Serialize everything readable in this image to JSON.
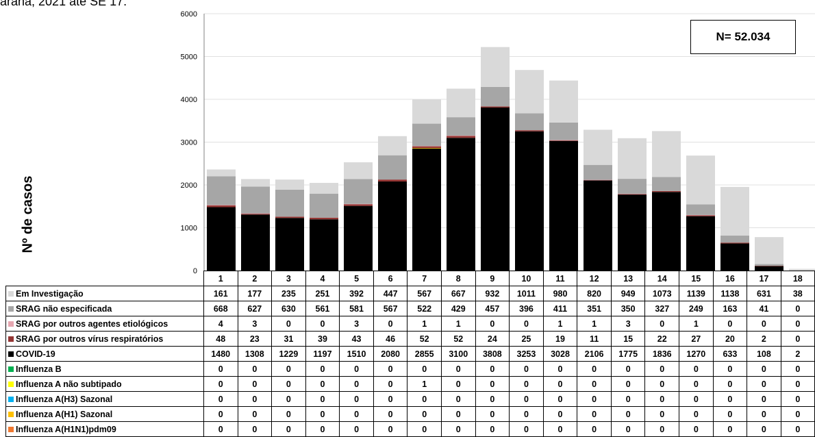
{
  "caption": "araná, 2021 até SE 17.",
  "n_label": "N= 52.034",
  "chart_data": {
    "type": "bar",
    "stacked": true,
    "ylabel": "Nº de casos",
    "ylim": [
      0,
      6000
    ],
    "yticks": [
      0,
      1000,
      2000,
      3000,
      4000,
      5000,
      6000
    ],
    "grid": true,
    "categories": [
      "1",
      "2",
      "3",
      "4",
      "5",
      "6",
      "7",
      "8",
      "9",
      "10",
      "11",
      "12",
      "13",
      "14",
      "15",
      "16",
      "17",
      "18"
    ],
    "series": [
      {
        "name": "Em Investigação",
        "color": "#d9d9d9",
        "values": [
          161,
          177,
          235,
          251,
          392,
          447,
          567,
          667,
          932,
          1011,
          980,
          820,
          949,
          1073,
          1139,
          1138,
          631,
          38
        ]
      },
      {
        "name": "SRAG não especificada",
        "color": "#a6a6a6",
        "values": [
          668,
          627,
          630,
          561,
          581,
          567,
          522,
          429,
          457,
          396,
          411,
          351,
          350,
          327,
          249,
          163,
          41,
          0
        ]
      },
      {
        "name": "SRAG por outros agentes etiológicos",
        "color": "#e6a6b0",
        "values": [
          4,
          3,
          0,
          0,
          3,
          0,
          1,
          1,
          0,
          0,
          1,
          1,
          3,
          0,
          1,
          0,
          0,
          0
        ]
      },
      {
        "name": "SRAG por outros vírus respiratórios",
        "color": "#943634",
        "values": [
          48,
          23,
          31,
          39,
          43,
          46,
          52,
          52,
          24,
          25,
          19,
          11,
          15,
          22,
          27,
          20,
          2,
          0
        ]
      },
      {
        "name": "COVID-19",
        "color": "#000000",
        "values": [
          1480,
          1308,
          1229,
          1197,
          1510,
          2080,
          2855,
          3100,
          3808,
          3253,
          3028,
          2106,
          1775,
          1836,
          1270,
          633,
          108,
          2
        ]
      },
      {
        "name": "Influenza B",
        "color": "#00b050",
        "values": [
          0,
          0,
          0,
          0,
          0,
          0,
          0,
          0,
          0,
          0,
          0,
          0,
          0,
          0,
          0,
          0,
          0,
          0
        ]
      },
      {
        "name": "Influenza A não subtipado",
        "color": "#ffff00",
        "values": [
          0,
          0,
          0,
          0,
          0,
          0,
          1,
          0,
          0,
          0,
          0,
          0,
          0,
          0,
          0,
          0,
          0,
          0
        ]
      },
      {
        "name": "Influenza A(H3) Sazonal",
        "color": "#00b0f0",
        "values": [
          0,
          0,
          0,
          0,
          0,
          0,
          0,
          0,
          0,
          0,
          0,
          0,
          0,
          0,
          0,
          0,
          0,
          0
        ]
      },
      {
        "name": "Influenza A(H1) Sazonal",
        "color": "#ffc000",
        "values": [
          0,
          0,
          0,
          0,
          0,
          0,
          0,
          0,
          0,
          0,
          0,
          0,
          0,
          0,
          0,
          0,
          0,
          0
        ]
      },
      {
        "name": "Influenza A(H1N1)pdm09",
        "color": "#f07830",
        "values": [
          0,
          0,
          0,
          0,
          0,
          0,
          0,
          0,
          0,
          0,
          0,
          0,
          0,
          0,
          0,
          0,
          0,
          0
        ]
      }
    ]
  }
}
